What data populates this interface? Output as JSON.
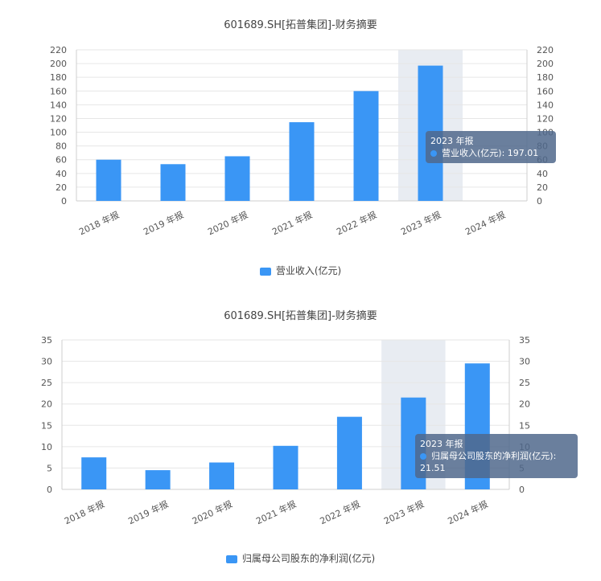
{
  "chart_data": [
    {
      "type": "bar",
      "title": "601689.SH[拓普集团]-财务摘要",
      "categories": [
        "2018 年报",
        "2019 年报",
        "2020 年报",
        "2021 年报",
        "2022 年报",
        "2023 年报",
        "2024 年报"
      ],
      "series": [
        {
          "name": "营业收入(亿元)",
          "values": [
            60,
            53.5,
            65,
            114.6,
            159.9,
            197.01,
            null
          ]
        }
      ],
      "ylim": [
        0,
        220
      ],
      "yticks": [
        0,
        20,
        40,
        60,
        80,
        100,
        120,
        140,
        160,
        180,
        200,
        220
      ],
      "highlight_category": "2023 年报",
      "tooltip": {
        "title": "2023 年报",
        "label": "营业收入(亿元): 197.01"
      },
      "legend": "bottom-center",
      "grid": true,
      "colors": {
        "bar": "#3a96f5",
        "highlight": "#e8ecf2"
      }
    },
    {
      "type": "bar",
      "title": "601689.SH[拓普集团]-财务摘要",
      "categories": [
        "2018 年报",
        "2019 年报",
        "2020 年报",
        "2021 年报",
        "2022 年报",
        "2023 年报",
        "2024 年报"
      ],
      "series": [
        {
          "name": "归属母公司股东的净利润(亿元)",
          "values": [
            7.5,
            4.5,
            6.3,
            10.2,
            17,
            21.51,
            29.5
          ]
        }
      ],
      "ylim": [
        0,
        35
      ],
      "yticks": [
        0,
        5,
        10,
        15,
        20,
        25,
        30,
        35
      ],
      "highlight_category": "2023 年报",
      "tooltip": {
        "title": "2023 年报",
        "label": "归属母公司股东的净利润(亿元):",
        "value": "21.51"
      },
      "legend": "bottom-center",
      "grid": true,
      "colors": {
        "bar": "#3a96f5",
        "highlight": "#e8ecf2"
      }
    }
  ]
}
